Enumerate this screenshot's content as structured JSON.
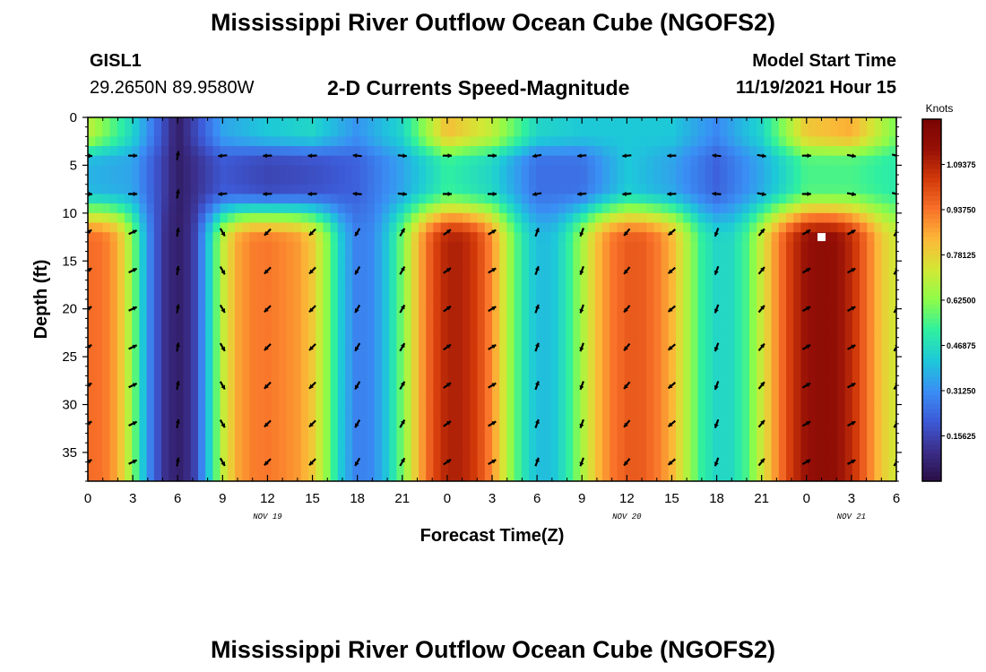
{
  "header": {
    "title": "Mississippi River Outflow Ocean Cube (NGOFS2)",
    "station_id": "GISL1",
    "coordinates": "29.2650N  89.9580W",
    "subtitle": "2-D Currents Speed-Magnitude",
    "model_start_label": "Model Start Time",
    "model_start_value": "11/19/2021 Hour 15"
  },
  "footer": {
    "title": "Mississippi River Outflow Ocean Cube (NGOFS2)"
  },
  "chart_data": {
    "type": "heatmap",
    "title": "2-D Currents Speed-Magnitude",
    "xlabel": "Forecast Time(Z)",
    "ylabel": "Depth (ft)",
    "x_tick_labels": [
      "0",
      "3",
      "6",
      "9",
      "12",
      "15",
      "18",
      "21",
      "0",
      "3",
      "6",
      "9",
      "12",
      "15",
      "18",
      "21",
      "0",
      "3",
      "6"
    ],
    "x_hours": [
      0,
      3,
      6,
      9,
      12,
      15,
      18,
      21,
      24,
      27,
      30,
      33,
      36,
      39,
      42,
      45,
      48,
      51,
      54
    ],
    "xlim": [
      0,
      54
    ],
    "y_ticks": [
      0,
      5,
      10,
      15,
      20,
      25,
      30,
      35
    ],
    "ylim": [
      0,
      38
    ],
    "day_labels": [
      {
        "text": "NOV 19",
        "hour": 12
      },
      {
        "text": "NOV 20",
        "hour": 36
      },
      {
        "text": "NOV 21",
        "hour": 51
      }
    ],
    "colorbar": {
      "label": "Knots",
      "tick_labels": [
        "1.09375",
        "0.93750",
        "0.78125",
        "0.62500",
        "0.46875",
        "0.31250",
        "0.15625"
      ],
      "ticks": [
        1.09375,
        0.9375,
        0.78125,
        0.625,
        0.46875,
        0.3125,
        0.15625
      ],
      "range": [
        0.0,
        1.25
      ],
      "colors": [
        "#2a0f46",
        "#3b2e8a",
        "#3d5bd8",
        "#3a8ff5",
        "#1dc8d9",
        "#2ff0a0",
        "#8cfc4a",
        "#d2e835",
        "#fbb938",
        "#f9722a",
        "#d23a0a",
        "#961006",
        "#7a0403"
      ]
    },
    "speed_field": {
      "unit": "knots",
      "bottom_layer_columns": [
        {
          "hour": 0,
          "speed": 0.95
        },
        {
          "hour": 1,
          "speed": 0.94
        },
        {
          "hour": 2,
          "speed": 0.85
        },
        {
          "hour": 3,
          "speed": 0.62
        },
        {
          "hour": 4,
          "speed": 0.32
        },
        {
          "hour": 5,
          "speed": 0.12
        },
        {
          "hour": 6,
          "speed": 0.05
        },
        {
          "hour": 7,
          "speed": 0.12
        },
        {
          "hour": 8,
          "speed": 0.4
        },
        {
          "hour": 9,
          "speed": 0.7
        },
        {
          "hour": 10,
          "speed": 0.86
        },
        {
          "hour": 11,
          "speed": 0.92
        },
        {
          "hour": 12,
          "speed": 0.93
        },
        {
          "hour": 13,
          "speed": 0.91
        },
        {
          "hour": 14,
          "speed": 0.88
        },
        {
          "hour": 15,
          "speed": 0.8
        },
        {
          "hour": 16,
          "speed": 0.62
        },
        {
          "hour": 17,
          "speed": 0.4
        },
        {
          "hour": 18,
          "speed": 0.28
        },
        {
          "hour": 19,
          "speed": 0.3
        },
        {
          "hour": 20,
          "speed": 0.42
        },
        {
          "hour": 21,
          "speed": 0.6
        },
        {
          "hour": 22,
          "speed": 0.82
        },
        {
          "hour": 23,
          "speed": 1.0
        },
        {
          "hour": 24,
          "speed": 1.1
        },
        {
          "hour": 25,
          "speed": 1.1
        },
        {
          "hour": 26,
          "speed": 1.03
        },
        {
          "hour": 27,
          "speed": 0.9
        },
        {
          "hour": 28,
          "speed": 0.68
        },
        {
          "hour": 29,
          "speed": 0.5
        },
        {
          "hour": 30,
          "speed": 0.4
        },
        {
          "hour": 31,
          "speed": 0.4
        },
        {
          "hour": 32,
          "speed": 0.5
        },
        {
          "hour": 33,
          "speed": 0.66
        },
        {
          "hour": 34,
          "speed": 0.82
        },
        {
          "hour": 35,
          "speed": 0.93
        },
        {
          "hour": 36,
          "speed": 0.98
        },
        {
          "hour": 37,
          "speed": 0.98
        },
        {
          "hour": 38,
          "speed": 0.93
        },
        {
          "hour": 39,
          "speed": 0.84
        },
        {
          "hour": 40,
          "speed": 0.68
        },
        {
          "hour": 41,
          "speed": 0.52
        },
        {
          "hour": 42,
          "speed": 0.45
        },
        {
          "hour": 43,
          "speed": 0.46
        },
        {
          "hour": 44,
          "speed": 0.55
        },
        {
          "hour": 45,
          "speed": 0.72
        },
        {
          "hour": 46,
          "speed": 0.9
        },
        {
          "hour": 47,
          "speed": 1.05
        },
        {
          "hour": 48,
          "speed": 1.15
        },
        {
          "hour": 49,
          "speed": 1.18
        },
        {
          "hour": 50,
          "speed": 1.16
        },
        {
          "hour": 51,
          "speed": 1.08
        },
        {
          "hour": 52,
          "speed": 0.95
        },
        {
          "hour": 53,
          "speed": 0.8
        },
        {
          "hour": 54,
          "speed": 0.72
        }
      ],
      "surface_layer_columns": [
        {
          "hour": 0,
          "speed": 0.7
        },
        {
          "hour": 3,
          "speed": 0.45
        },
        {
          "hour": 6,
          "speed": 0.05
        },
        {
          "hour": 9,
          "speed": 0.35
        },
        {
          "hour": 12,
          "speed": 0.42
        },
        {
          "hour": 15,
          "speed": 0.45
        },
        {
          "hour": 18,
          "speed": 0.32
        },
        {
          "hour": 21,
          "speed": 0.45
        },
        {
          "hour": 24,
          "speed": 0.82
        },
        {
          "hour": 27,
          "speed": 0.7
        },
        {
          "hour": 30,
          "speed": 0.45
        },
        {
          "hour": 33,
          "speed": 0.42
        },
        {
          "hour": 36,
          "speed": 0.42
        },
        {
          "hour": 39,
          "speed": 0.42
        },
        {
          "hour": 42,
          "speed": 0.3
        },
        {
          "hour": 45,
          "speed": 0.45
        },
        {
          "hour": 48,
          "speed": 0.8
        },
        {
          "hour": 51,
          "speed": 0.85
        },
        {
          "hour": 54,
          "speed": 0.6
        }
      ],
      "mid_layer_columns": [
        {
          "hour": 0,
          "speed": 0.38
        },
        {
          "hour": 3,
          "speed": 0.35
        },
        {
          "hour": 6,
          "speed": 0.05
        },
        {
          "hour": 9,
          "speed": 0.2
        },
        {
          "hour": 12,
          "speed": 0.16
        },
        {
          "hour": 15,
          "speed": 0.18
        },
        {
          "hour": 18,
          "speed": 0.22
        },
        {
          "hour": 21,
          "speed": 0.35
        },
        {
          "hour": 24,
          "speed": 0.52
        },
        {
          "hour": 27,
          "speed": 0.45
        },
        {
          "hour": 30,
          "speed": 0.25
        },
        {
          "hour": 33,
          "speed": 0.25
        },
        {
          "hour": 36,
          "speed": 0.42
        },
        {
          "hour": 39,
          "speed": 0.35
        },
        {
          "hour": 42,
          "speed": 0.22
        },
        {
          "hour": 45,
          "speed": 0.36
        },
        {
          "hour": 48,
          "speed": 0.55
        },
        {
          "hour": 51,
          "speed": 0.55
        },
        {
          "hour": 54,
          "speed": 0.5
        }
      ]
    },
    "vectors": {
      "depths": [
        4,
        8,
        12,
        16,
        20,
        24,
        28,
        32,
        36
      ],
      "hours": [
        0,
        3,
        6,
        9,
        12,
        15,
        18,
        21,
        24,
        27,
        30,
        33,
        36,
        39,
        42,
        45,
        48,
        51,
        54
      ],
      "bottom_directions_deg": [
        -30,
        -25,
        -80,
        60,
        135,
        135,
        120,
        -60,
        -35,
        -30,
        -70,
        110,
        130,
        140,
        110,
        -50,
        -30,
        -28,
        -60
      ],
      "surface_directions_deg": [
        5,
        0,
        -80,
        175,
        178,
        178,
        185,
        5,
        0,
        0,
        170,
        175,
        175,
        178,
        185,
        10,
        0,
        10,
        15
      ]
    },
    "marker": {
      "hour": 49,
      "depth": 12.5
    }
  }
}
